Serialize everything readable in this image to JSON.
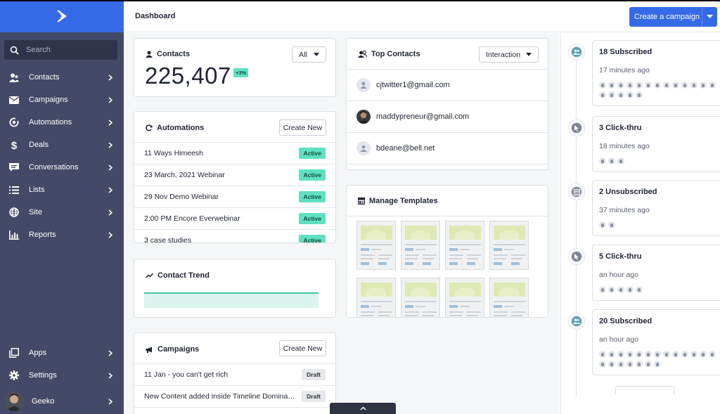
{
  "sidebar": {
    "search_placeholder": "Search",
    "items": [
      {
        "label": "Contacts",
        "icon": "contacts-icon"
      },
      {
        "label": "Campaigns",
        "icon": "envelope-icon"
      },
      {
        "label": "Automations",
        "icon": "automations-icon"
      },
      {
        "label": "Deals",
        "icon": "dollar-icon"
      },
      {
        "label": "Conversations",
        "icon": "chat-icon"
      },
      {
        "label": "Lists",
        "icon": "list-icon"
      },
      {
        "label": "Site",
        "icon": "globe-icon"
      },
      {
        "label": "Reports",
        "icon": "bar-chart-icon"
      }
    ],
    "bottom_items": [
      {
        "label": "Apps",
        "icon": "apps-icon"
      },
      {
        "label": "Settings",
        "icon": "gear-icon"
      }
    ],
    "user": {
      "name": "Geeko"
    }
  },
  "header": {
    "title": "Dashboard",
    "cta_label": "Create a campaign"
  },
  "contacts_card": {
    "title": "Contacts",
    "count": "225,407",
    "change": "+3%",
    "filter": "All"
  },
  "automations_card": {
    "title": "Automations",
    "button": "Create New",
    "rows": [
      {
        "name": "11 Ways Himeesh",
        "status": "Active"
      },
      {
        "name": "23 March, 2021 Webinar",
        "status": "Active"
      },
      {
        "name": "29 Nov Demo Webinar",
        "status": "Active"
      },
      {
        "name": "2:00 PM Encore Everwebinar",
        "status": "Active"
      },
      {
        "name": "3 case studies",
        "status": "Active"
      }
    ]
  },
  "contact_trend_card": {
    "title": "Contact Trend"
  },
  "campaigns_card": {
    "title": "Campaigns",
    "button": "Create New",
    "rows": [
      {
        "name": "11 Jan - you can't get rich",
        "status": "Draft"
      },
      {
        "name": "New Content added inside Timeline Domination",
        "status": "Draft"
      }
    ]
  },
  "top_contacts_card": {
    "title": "Top Contacts",
    "filter": "Interaction",
    "contacts": [
      {
        "email": "cjtwitter1@gmail.com"
      },
      {
        "email": "maddypreneur@gmail.com"
      },
      {
        "email": "bdeane@bell.net"
      }
    ]
  },
  "templates_card": {
    "title": "Manage Templates",
    "count": 8
  },
  "activity": [
    {
      "title": "18 Subscribed",
      "time": "17 minutes ago",
      "count": 18,
      "icon": "subscribed-icon"
    },
    {
      "title": "3 Click-thru",
      "time": "18 minutes ago",
      "count": 3,
      "icon": "click-icon"
    },
    {
      "title": "2 Unsubscribed",
      "time": "37 minutes ago",
      "count": 2,
      "icon": "unsubscribed-icon"
    },
    {
      "title": "5 Click-thru",
      "time": "an hour ago",
      "count": 5,
      "icon": "click-icon"
    },
    {
      "title": "20 Subscribed",
      "time": "an hour ago",
      "count": 20,
      "icon": "subscribed-icon"
    }
  ],
  "colors": {
    "sidebar": "#434966",
    "brand": "#356ae6",
    "active_badge": "#5fe0c0",
    "trend_line": "#3cc9a4"
  }
}
